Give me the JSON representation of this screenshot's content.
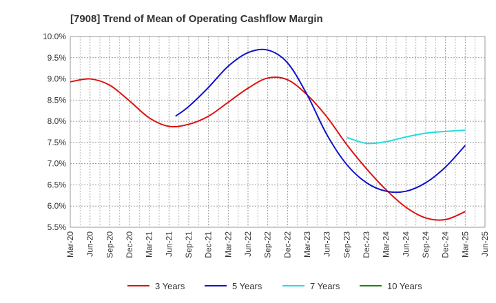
{
  "chart_data": {
    "type": "line",
    "title": "[7908]  Trend of Mean of Operating Cashflow Margin",
    "xlabel": "",
    "ylabel": "",
    "x_ticks": [
      "Mar-20",
      "Jun-20",
      "Sep-20",
      "Dec-20",
      "Mar-21",
      "Jun-21",
      "Sep-21",
      "Dec-21",
      "Mar-22",
      "Jun-22",
      "Sep-22",
      "Dec-22",
      "Mar-23",
      "Jun-23",
      "Sep-23",
      "Dec-23",
      "Mar-24",
      "Jun-24",
      "Sep-24",
      "Dec-24",
      "Mar-25",
      "Jun-25"
    ],
    "y_ticks": [
      "5.5%",
      "6.0%",
      "6.5%",
      "7.0%",
      "7.5%",
      "8.0%",
      "8.5%",
      "9.0%",
      "9.5%",
      "10.0%"
    ],
    "ylim": [
      5.5,
      10.0
    ],
    "grid": true,
    "legend_position": "bottom",
    "series": [
      {
        "name": "3 Years",
        "color": "#dd1111",
        "points": [
          [
            0,
            8.93
          ],
          [
            1,
            9.0
          ],
          [
            2,
            8.85
          ],
          [
            3,
            8.48
          ],
          [
            4,
            8.08
          ],
          [
            5,
            7.88
          ],
          [
            6,
            7.93
          ],
          [
            7,
            8.12
          ],
          [
            8,
            8.45
          ],
          [
            9,
            8.78
          ],
          [
            10,
            9.02
          ],
          [
            11,
            8.98
          ],
          [
            12,
            8.62
          ],
          [
            13,
            8.1
          ],
          [
            14,
            7.45
          ],
          [
            15,
            6.88
          ],
          [
            16,
            6.38
          ],
          [
            17,
            5.97
          ],
          [
            18,
            5.72
          ],
          [
            19,
            5.68
          ],
          [
            20,
            5.87
          ]
        ]
      },
      {
        "name": "5 Years",
        "color": "#1111cc",
        "points": [
          [
            5.33,
            8.12
          ],
          [
            6,
            8.35
          ],
          [
            7,
            8.8
          ],
          [
            8,
            9.3
          ],
          [
            9,
            9.62
          ],
          [
            10,
            9.68
          ],
          [
            11,
            9.38
          ],
          [
            12,
            8.62
          ],
          [
            13,
            7.68
          ],
          [
            14,
            6.98
          ],
          [
            15,
            6.55
          ],
          [
            16,
            6.35
          ],
          [
            17,
            6.35
          ],
          [
            18,
            6.55
          ],
          [
            19,
            6.92
          ],
          [
            20,
            7.43
          ]
        ]
      },
      {
        "name": "7 Years",
        "color": "#22dddd",
        "points": [
          [
            14,
            7.62
          ],
          [
            15,
            7.48
          ],
          [
            16,
            7.52
          ],
          [
            17,
            7.63
          ],
          [
            18,
            7.72
          ],
          [
            19,
            7.76
          ],
          [
            20,
            7.79
          ]
        ]
      },
      {
        "name": "10 Years",
        "color": "#118811",
        "points": []
      }
    ]
  }
}
